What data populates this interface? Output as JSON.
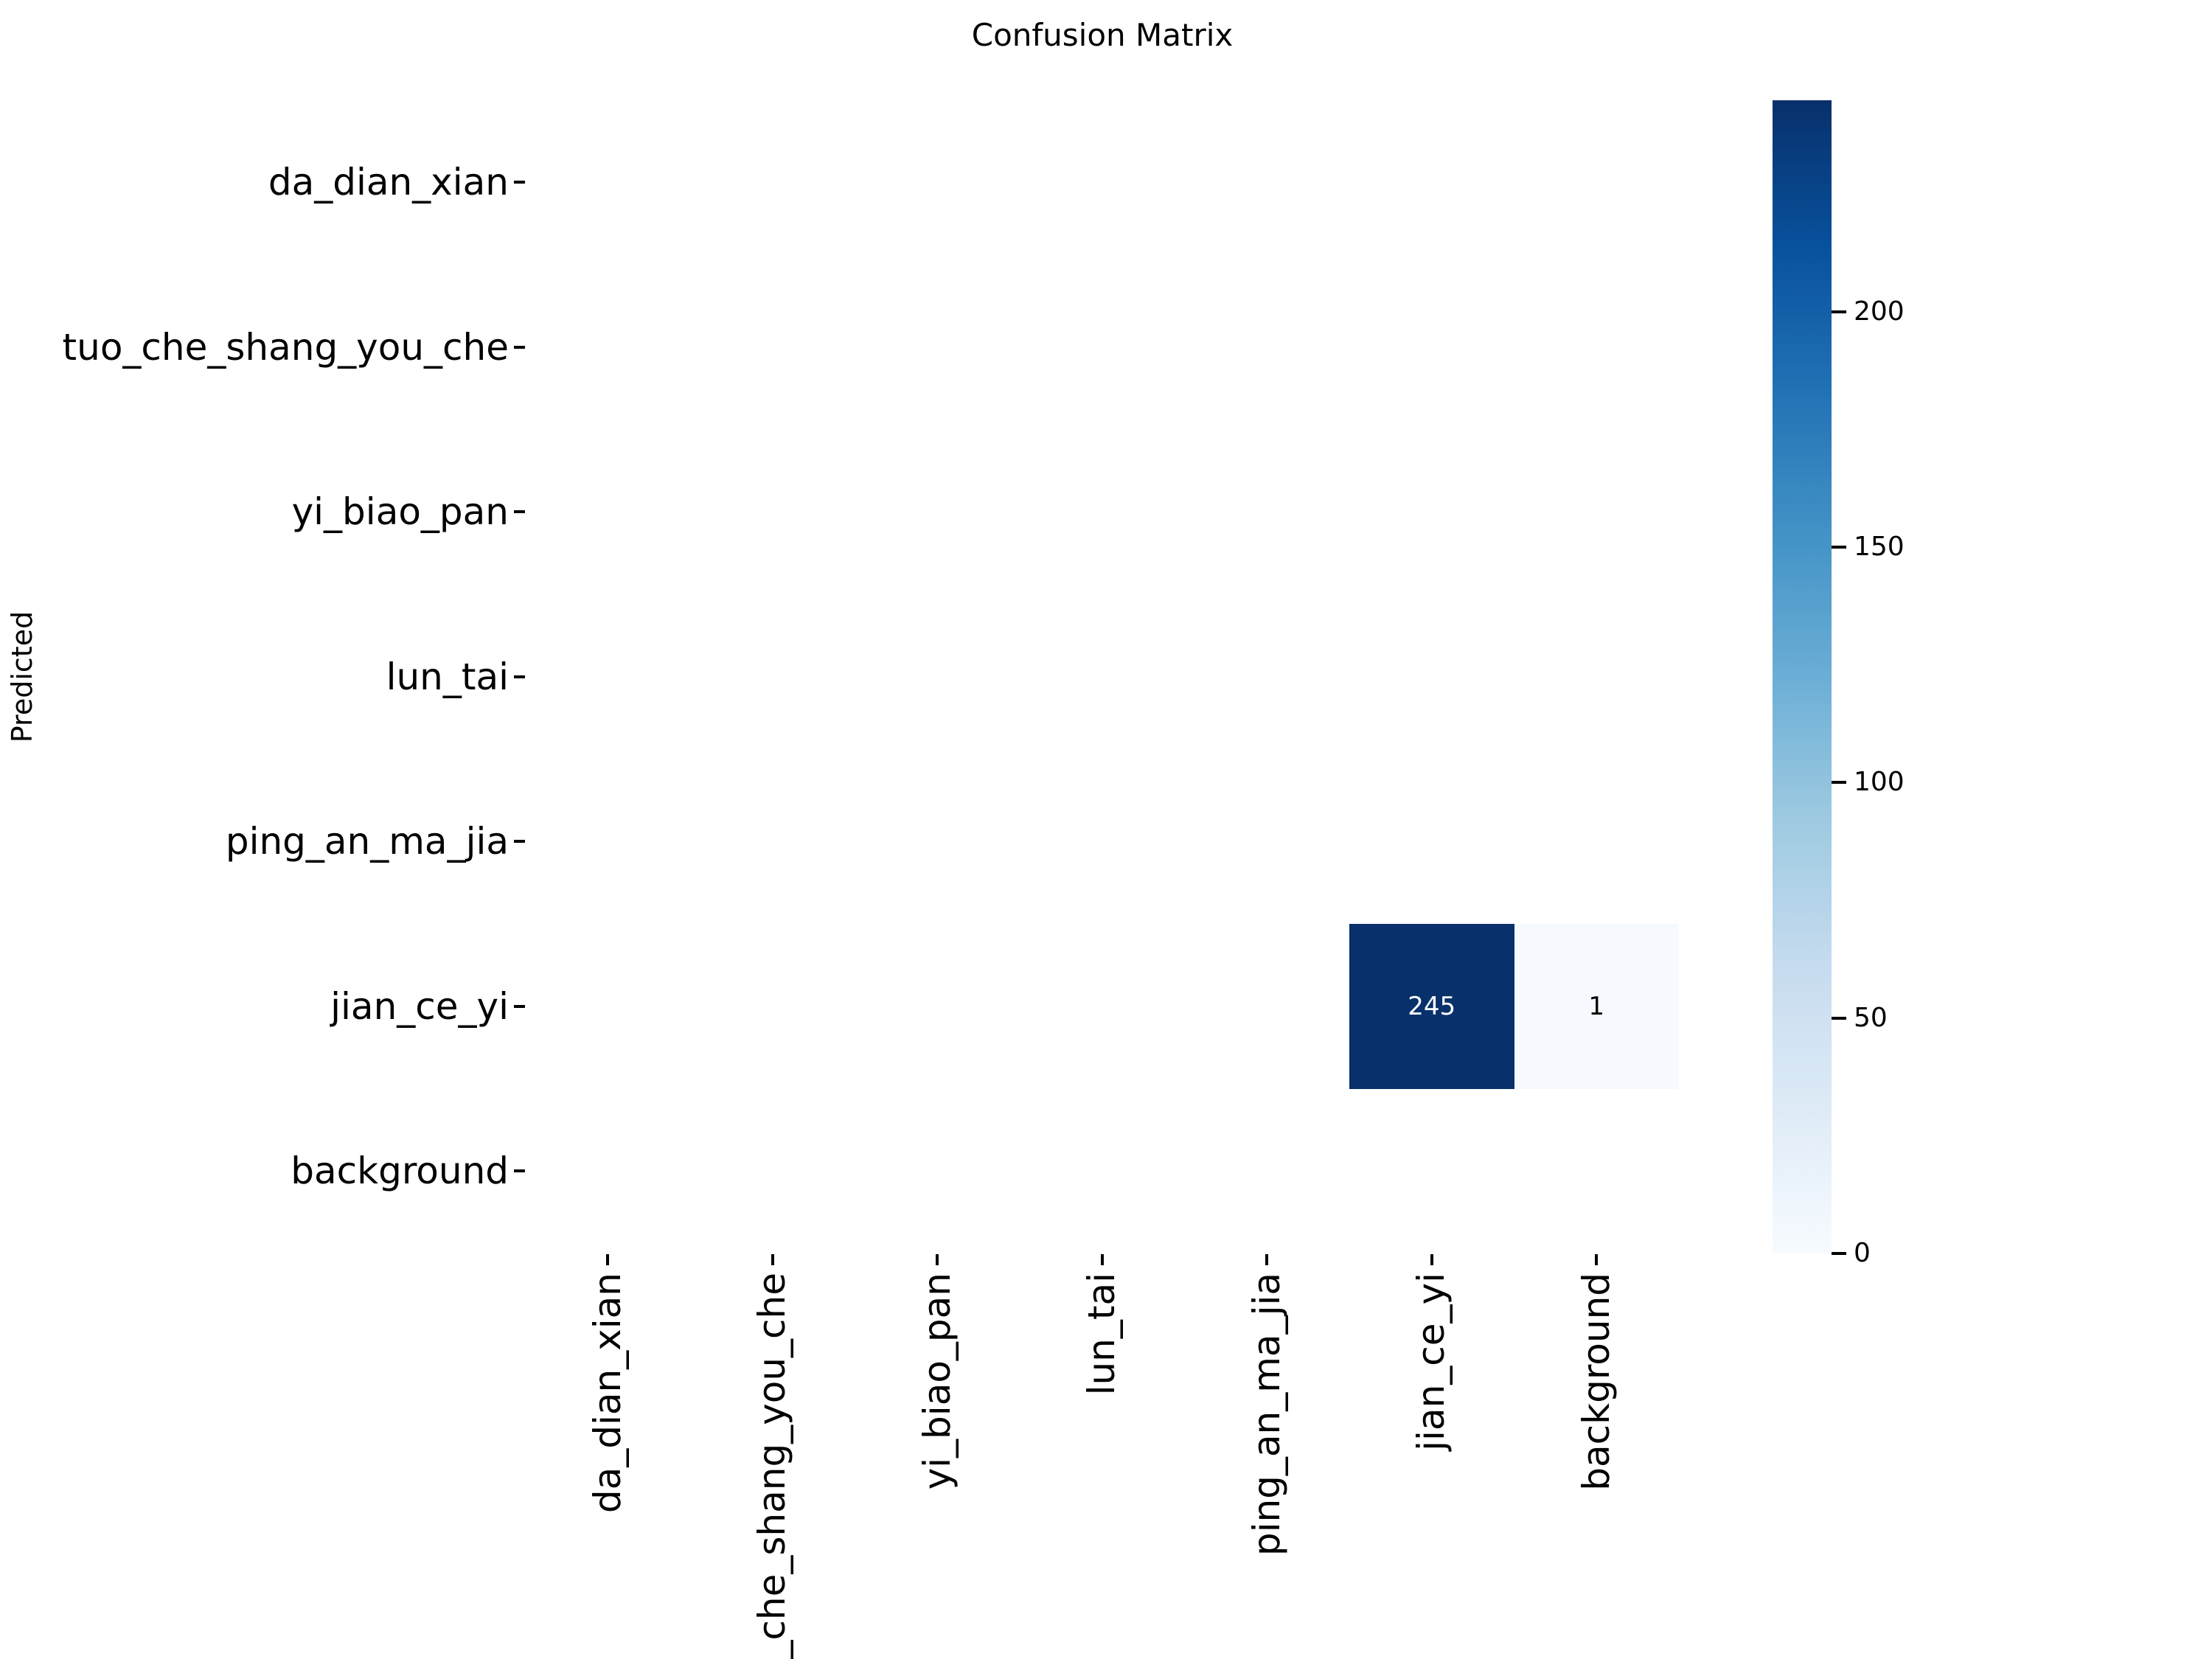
{
  "chart_data": {
    "type": "heatmap",
    "title": "Confusion Matrix",
    "x_axis_label": "",
    "y_axis_label": "Predicted",
    "x_categories": [
      "da_dian_xian",
      "tuo_che_shang_you_che",
      "yi_biao_pan",
      "lun_tai",
      "ping_an_ma_jia",
      "jian_ce_yi",
      "background"
    ],
    "y_categories": [
      "da_dian_xian",
      "tuo_che_shang_you_che",
      "yi_biao_pan",
      "lun_tai",
      "ping_an_ma_jia",
      "jian_ce_yi",
      "background"
    ],
    "matrix": [
      [
        0,
        0,
        0,
        0,
        0,
        0,
        0
      ],
      [
        0,
        0,
        0,
        0,
        0,
        0,
        0
      ],
      [
        0,
        0,
        0,
        0,
        0,
        0,
        0
      ],
      [
        0,
        0,
        0,
        0,
        0,
        0,
        0
      ],
      [
        0,
        0,
        0,
        0,
        0,
        0,
        0
      ],
      [
        0,
        0,
        0,
        0,
        0,
        245,
        1
      ],
      [
        0,
        0,
        0,
        0,
        0,
        0,
        0
      ]
    ],
    "annotated_cells": [
      {
        "row": 5,
        "col": 5,
        "value": 245,
        "label": "245",
        "bg_color": "#08306b",
        "text_color": "#ffffff"
      },
      {
        "row": 5,
        "col": 6,
        "value": 1,
        "label": "1",
        "bg_color": "#f6fafe",
        "text_color": "#000000"
      }
    ],
    "colormap": "Blues",
    "vmin": 0,
    "vmax": 245,
    "colorbar_ticks": [
      0,
      50,
      100,
      150,
      200
    ],
    "colorbar_gradient": [
      {
        "pos": 0.0,
        "color": "#f7fbff"
      },
      {
        "pos": 0.125,
        "color": "#deebf7"
      },
      {
        "pos": 0.25,
        "color": "#c6dbef"
      },
      {
        "pos": 0.375,
        "color": "#9ecae1"
      },
      {
        "pos": 0.5,
        "color": "#6baed6"
      },
      {
        "pos": 0.625,
        "color": "#4292c6"
      },
      {
        "pos": 0.75,
        "color": "#2171b5"
      },
      {
        "pos": 0.875,
        "color": "#08519c"
      },
      {
        "pos": 1.0,
        "color": "#08306b"
      }
    ],
    "grid": false,
    "tick_color": "#000000",
    "text_color": "#000000",
    "background_color": "#ffffff"
  }
}
